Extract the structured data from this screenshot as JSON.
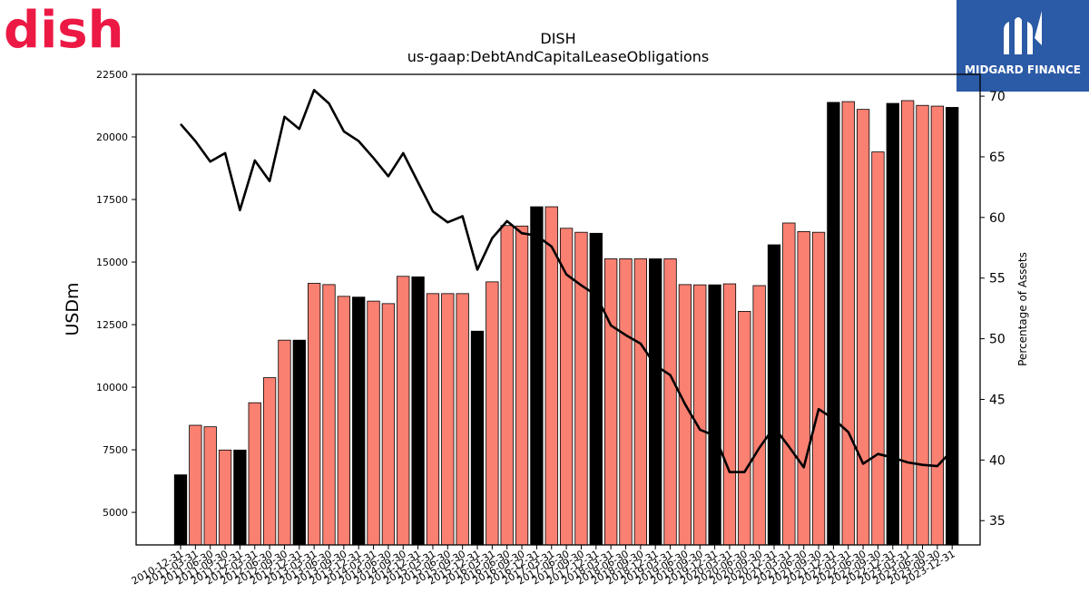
{
  "branding": {
    "left_logo_text": "dish",
    "left_logo_color": "#ec1944",
    "right_logo_text": "MIDGARD FINANCE",
    "right_logo_bg": "#2b5aa6"
  },
  "chart_data": {
    "type": "bar",
    "title": "DISH",
    "subtitle": "us-gaap:DebtAndCapitalLeaseObligations",
    "ylabel": "USDm",
    "y2label": "Percentage of Assets",
    "ylim": [
      3700,
      22500
    ],
    "y2lim": [
      33,
      71.8
    ],
    "yticks": [
      5000,
      7500,
      10000,
      12500,
      15000,
      17500,
      20000,
      22500
    ],
    "y2ticks": [
      35,
      40,
      45,
      50,
      55,
      60,
      65,
      70
    ],
    "colors": {
      "annual": "#000000",
      "quarterly": "#fa8072",
      "line": "#000000"
    },
    "categories": [
      "2010-12-31",
      "2011-03-31",
      "2011-06-30",
      "2011-09-30",
      "2011-12-31",
      "2012-03-31",
      "2012-06-30",
      "2012-09-30",
      "2012-12-31",
      "2013-03-31",
      "2013-06-30",
      "2013-09-30",
      "2013-12-31",
      "2014-03-31",
      "2014-06-30",
      "2014-09-30",
      "2014-12-31",
      "2015-03-31",
      "2015-06-30",
      "2015-09-30",
      "2015-12-31",
      "2016-03-31",
      "2016-06-30",
      "2016-09-30",
      "2016-12-31",
      "2017-03-31",
      "2017-06-30",
      "2017-09-30",
      "2017-12-31",
      "2018-03-31",
      "2018-06-30",
      "2018-09-30",
      "2018-12-31",
      "2019-03-31",
      "2019-06-30",
      "2019-09-30",
      "2019-12-31",
      "2020-03-31",
      "2020-06-30",
      "2020-09-30",
      "2020-12-31",
      "2021-03-31",
      "2021-06-30",
      "2021-09-30",
      "2021-12-31",
      "2022-03-31",
      "2022-06-30",
      "2022-09-30",
      "2022-12-31",
      "2023-03-31",
      "2023-06-30",
      "2023-09-30",
      "2023-12-31"
    ],
    "annual_flags": [
      1,
      0,
      0,
      0,
      1,
      0,
      0,
      0,
      1,
      0,
      0,
      0,
      1,
      0,
      0,
      0,
      1,
      0,
      0,
      0,
      1,
      0,
      0,
      0,
      1,
      0,
      0,
      0,
      1,
      0,
      0,
      0,
      1,
      0,
      0,
      0,
      1,
      0,
      0,
      0,
      1,
      0,
      0,
      0,
      1,
      0,
      0,
      0,
      1,
      0,
      0,
      0,
      1
    ],
    "values": [
      6500,
      8480,
      8420,
      7490,
      7490,
      9380,
      10380,
      11880,
      11880,
      14150,
      14100,
      13630,
      13600,
      13440,
      13340,
      14430,
      14410,
      13740,
      13740,
      13740,
      12240,
      14210,
      16460,
      16440,
      17210,
      17210,
      16350,
      16190,
      16150,
      15130,
      15130,
      15130,
      15130,
      15130,
      14100,
      14090,
      14090,
      14130,
      13030,
      14060,
      15690,
      16560,
      16220,
      16190,
      21380,
      21410,
      21100,
      19400,
      21340,
      21450,
      21260,
      21230,
      21180
    ],
    "line_values": [
      67.7,
      66.3,
      64.6,
      65.3,
      60.6,
      64.7,
      63.0,
      68.3,
      67.3,
      70.5,
      69.4,
      67.1,
      66.3,
      64.9,
      63.4,
      65.3,
      62.9,
      60.5,
      59.6,
      60.1,
      55.7,
      58.3,
      59.7,
      58.7,
      58.5,
      57.6,
      55.3,
      54.4,
      53.6,
      51.1,
      50.3,
      49.6,
      47.8,
      47.0,
      44.6,
      42.5,
      42.0,
      39.0,
      39.0,
      41.0,
      42.7,
      41.1,
      39.4,
      44.2,
      43.4,
      42.3,
      39.7,
      40.5,
      40.2,
      39.8,
      39.6,
      39.5,
      40.8
    ]
  }
}
